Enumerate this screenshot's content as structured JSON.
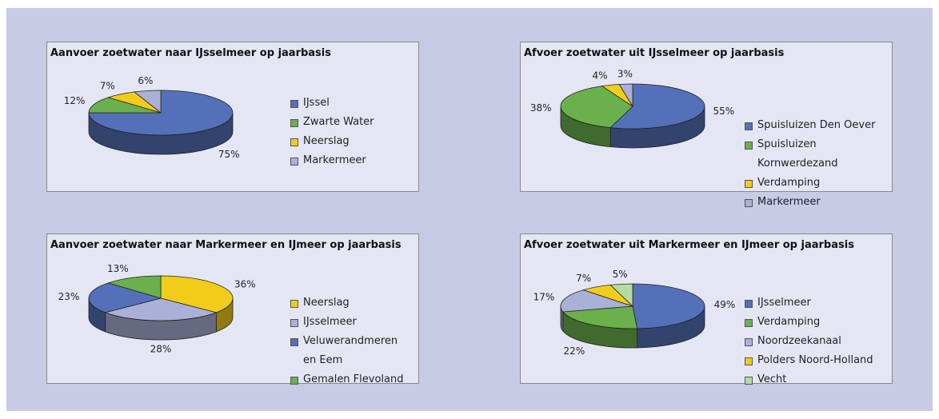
{
  "chart_data": [
    {
      "type": "pie",
      "title": "Aanvoer zoetwater naar IJsselmeer op jaarbasis",
      "categories": [
        "IJssel",
        "Zwarte Water",
        "Neerslag",
        "Markermeer"
      ],
      "values": [
        75,
        12,
        7,
        6
      ],
      "value_labels": [
        "75%",
        "12%",
        "7%",
        "6%"
      ],
      "colors": [
        "#5470b8",
        "#6ab04c",
        "#f2cc1b",
        "#aab0d6"
      ]
    },
    {
      "type": "pie",
      "title": "Afvoer zoetwater uit IJsselmeer op jaarbasis",
      "categories": [
        "Spuisluizen Den Oever",
        "Spuisluizen Kornwerdezand",
        "Verdamping",
        "Markermeer"
      ],
      "values": [
        55,
        38,
        4,
        3
      ],
      "value_labels": [
        "55%",
        "38%",
        "4%",
        "3%"
      ],
      "colors": [
        "#5470b8",
        "#6ab04c",
        "#f2cc1b",
        "#aab0d6"
      ]
    },
    {
      "type": "pie",
      "title": "Aanvoer zoetwater naar Markermeer en IJmeer op jaarbasis",
      "categories": [
        "Neerslag",
        "IJsselmeer",
        "Veluwerandmeren en Eem",
        "Gemalen Flevoland"
      ],
      "values": [
        36,
        28,
        23,
        13
      ],
      "value_labels": [
        "36%",
        "28%",
        "23%",
        "13%"
      ],
      "colors": [
        "#f2cc1b",
        "#aab0d6",
        "#5470b8",
        "#6ab04c"
      ]
    },
    {
      "type": "pie",
      "title": "Afvoer zoetwater uit Markermeer en IJmeer op jaarbasis",
      "categories": [
        "IJsselmeer",
        "Verdamping",
        "Noordzeekanaal",
        "Polders Noord-Holland",
        "Vecht"
      ],
      "values": [
        49,
        22,
        17,
        7,
        5
      ],
      "value_labels": [
        "49%",
        "22%",
        "17%",
        "7%",
        "5%"
      ],
      "colors": [
        "#5470b8",
        "#6ab04c",
        "#aab0d6",
        "#f2cc1b",
        "#b5dca0"
      ]
    }
  ]
}
